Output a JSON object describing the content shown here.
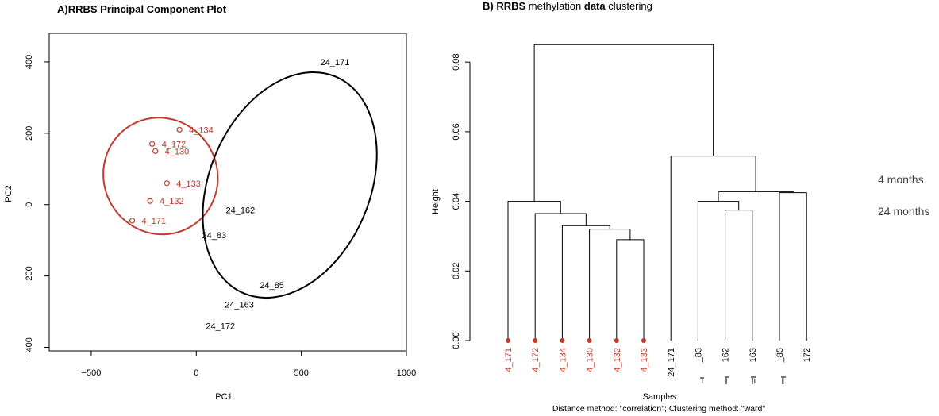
{
  "legend": {
    "items": [
      "4 months",
      "24 months"
    ],
    "colors": [
      "#c0392b",
      "#000000"
    ],
    "placement": "right"
  },
  "chart_data": [
    {
      "type": "scatter",
      "title": "A)RRBS Principal Component Plot",
      "xlabel": "PC1",
      "ylabel": "PC2",
      "xlim": [
        -700,
        1000
      ],
      "ylim": [
        -410,
        480
      ],
      "xticks": [
        -500,
        0,
        500,
        1000
      ],
      "yticks": [
        -400,
        -200,
        0,
        200,
        400
      ],
      "grid": false,
      "series": [
        {
          "color": "#c0392b",
          "points": [
            {
              "label": "4_134",
              "x": -80,
              "y": 210
            },
            {
              "label": "4_172",
              "x": -210,
              "y": 170
            },
            {
              "label": "4_130",
              "x": -195,
              "y": 150
            },
            {
              "label": "4_133",
              "x": -140,
              "y": 60
            },
            {
              "label": "4_132",
              "x": -220,
              "y": 10
            },
            {
              "label": "4_171",
              "x": -305,
              "y": -45
            }
          ],
          "ellipse": {
            "cx": -170,
            "cy": 80,
            "rx": 270,
            "ry": 165,
            "rotation_deg": -30
          }
        },
        {
          "color": "#000000",
          "points": [
            {
              "label": "24_171",
              "x": 660,
              "y": 400
            },
            {
              "label": "24_162",
              "x": 210,
              "y": -15
            },
            {
              "label": "24_83",
              "x": 85,
              "y": -85
            },
            {
              "label": "24_85",
              "x": 360,
              "y": -225
            },
            {
              "label": "24_163",
              "x": 205,
              "y": -280
            },
            {
              "label": "24_172",
              "x": 115,
              "y": -340
            }
          ],
          "ellipse": {
            "cx": 445,
            "cy": 55,
            "rx": 560,
            "ry": 225,
            "rotation_deg": -67
          }
        }
      ]
    },
    {
      "type": "dendrogram",
      "title": "B) RRBS methylation   data clustering",
      "title_bold_parts": [
        "RRBS",
        "data"
      ],
      "xlabel": "Samples",
      "subtitle": "Distance method: \"correlation\"; Clustering method: \"ward\"",
      "ylabel": "Height",
      "ylim": [
        0,
        0.085
      ],
      "yticks": [
        "0.00",
        "0.02",
        "0.04",
        "0.06",
        "0.08"
      ],
      "leaves": [
        {
          "label": "4_171",
          "color": "#c0392b",
          "marker": true
        },
        {
          "label": "4_172",
          "color": "#c0392b",
          "marker": true
        },
        {
          "label": "4_134",
          "color": "#c0392b",
          "marker": true
        },
        {
          "label": "4_130",
          "color": "#c0392b",
          "marker": true
        },
        {
          "label": "4_132",
          "color": "#c0392b",
          "marker": true
        },
        {
          "label": "4_133",
          "color": "#c0392b",
          "marker": true
        },
        {
          "label": "24_171",
          "color": "#000000",
          "marker": false
        },
        {
          "label": "_83",
          "color": "#000000",
          "marker": false
        },
        {
          "label": "162",
          "color": "#000000",
          "marker": false
        },
        {
          "label": "163",
          "color": "#000000",
          "marker": false
        },
        {
          "label": "_85",
          "color": "#000000",
          "marker": false
        },
        {
          "label": "172",
          "color": "#000000",
          "marker": false
        }
      ],
      "merges": [
        {
          "left": "leaf:4",
          "right": "leaf:5",
          "height": 0.029
        },
        {
          "left": "leaf:3",
          "right": "node:0",
          "height": 0.032
        },
        {
          "left": "leaf:2",
          "right": "node:1",
          "height": 0.033
        },
        {
          "left": "leaf:1",
          "right": "node:2",
          "height": 0.0365
        },
        {
          "left": "leaf:0",
          "right": "node:3",
          "height": 0.04
        },
        {
          "left": "leaf:8",
          "right": "leaf:9",
          "height": 0.0375
        },
        {
          "left": "leaf:7",
          "right": "node:5",
          "height": 0.04
        },
        {
          "left": "leaf:10",
          "right": "leaf:11",
          "height": 0.0425
        },
        {
          "left": "node:6",
          "right": "node:7",
          "height": 0.0428
        },
        {
          "left": "leaf:6",
          "right": "node:8",
          "height": 0.053
        },
        {
          "left": "node:4",
          "right": "node:9",
          "height": 0.085
        }
      ]
    }
  ]
}
